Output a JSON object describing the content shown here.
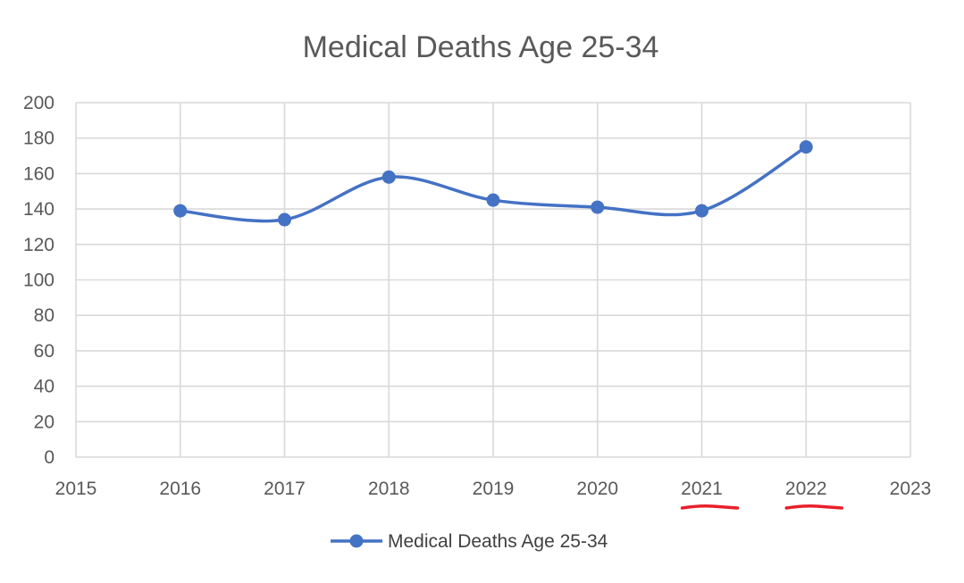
{
  "chart_data": {
    "type": "line",
    "title": "Medical Deaths Age 25-34",
    "xlabel": "",
    "ylabel": "",
    "xlim": [
      2015,
      2023
    ],
    "ylim": [
      0,
      200
    ],
    "x_ticks": [
      "2015",
      "2016",
      "2017",
      "2018",
      "2019",
      "2020",
      "2021",
      "2022",
      "2023"
    ],
    "y_ticks": [
      "0",
      "20",
      "40",
      "60",
      "80",
      "100",
      "120",
      "140",
      "160",
      "180",
      "200"
    ],
    "grid": true,
    "smooth": true,
    "legend": "bottom",
    "series": [
      {
        "name": "Medical Deaths Age 25-34",
        "color": "#4472C4",
        "x": [
          2016,
          2017,
          2018,
          2019,
          2020,
          2021,
          2022
        ],
        "values": [
          139,
          134,
          158,
          145,
          141,
          139,
          175
        ]
      }
    ],
    "annotations": [
      {
        "type": "handwritten-underline",
        "color": "#E8202A",
        "target": "2021"
      },
      {
        "type": "handwritten-underline",
        "color": "#E8202A",
        "target": "2022"
      }
    ]
  }
}
